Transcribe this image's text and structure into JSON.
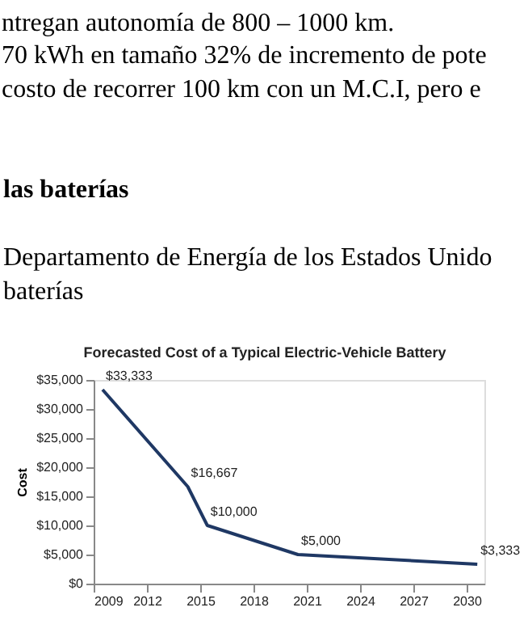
{
  "chart_data": {
    "type": "line",
    "title": "Forecasted Cost of a Typical Electric-Vehicle Battery",
    "ylabel": "Cost",
    "annotations": [
      "ntregan autonomía de 800 – 1000 km.",
      "70 kWh en tamaño 32% de incremento de pote",
      "costo de recorrer 100 km con un M.C.I, pero e",
      "las baterías",
      "Departamento de Energía de los Estados Unido",
      "baterías"
    ],
    "x": [
      2009.5,
      2014.3,
      2015.4,
      2020.5,
      2030.6
    ],
    "series": [
      {
        "color": "#1f3864",
        "values": [
          33333,
          16667,
          10000,
          5000,
          3333
        ],
        "value_labels": [
          "$33,333",
          "$16,667",
          "$10,000",
          "$5,000",
          "$3,333"
        ]
      }
    ],
    "xlim": [
      2009,
      2031
    ],
    "xticks": [
      2009,
      2012,
      2015,
      2018,
      2021,
      2024,
      2027,
      2030
    ],
    "ylim": [
      0,
      35000
    ],
    "yticks": [
      {
        "value": 0,
        "label": "$0"
      },
      {
        "value": 5000,
        "label": "$5,000"
      },
      {
        "value": 10000,
        "label": "$10,000"
      },
      {
        "value": 15000,
        "label": "$15,000"
      },
      {
        "value": 20000,
        "label": "$20,000"
      },
      {
        "value": 25000,
        "label": "$25,000"
      },
      {
        "value": 30000,
        "label": "$30,000"
      },
      {
        "value": 35000,
        "label": "$35,000"
      }
    ],
    "grid": false,
    "marker": "none",
    "line_style": "solid"
  }
}
